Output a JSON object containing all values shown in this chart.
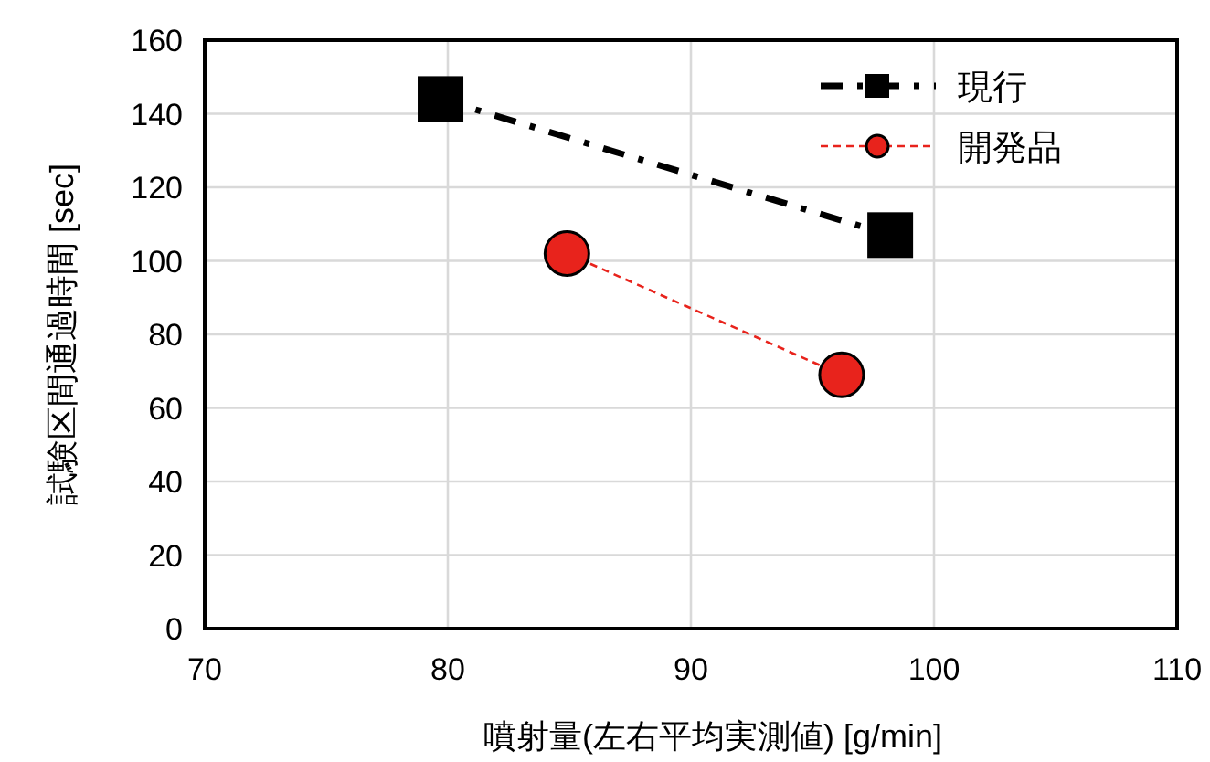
{
  "chart_data": {
    "type": "line",
    "xlabel": "噴射量(左右平均実測値) [g/min]",
    "ylabel": "試験区間通過時間 [sec]",
    "xlim": [
      70,
      110
    ],
    "xticks": [
      70,
      80,
      90,
      100,
      110
    ],
    "ylim": [
      0,
      160
    ],
    "yticks": [
      0,
      20,
      40,
      60,
      80,
      100,
      120,
      140,
      160
    ],
    "grid": true,
    "legend": "top right",
    "series": [
      {
        "name": "現行",
        "color": "#000000",
        "x": [
          79.7,
          98.2
        ],
        "values": [
          144,
          107
        ],
        "marker": "square",
        "line_style": "dashdot"
      },
      {
        "name": "開発品",
        "color": "#e8231c",
        "x": [
          84.9,
          96.2
        ],
        "values": [
          102,
          69
        ],
        "marker": "circle",
        "line_style": "dashed"
      }
    ]
  }
}
